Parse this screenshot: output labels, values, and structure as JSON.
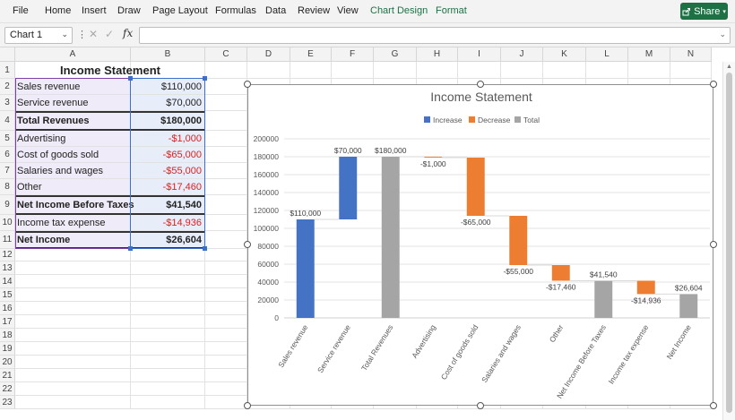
{
  "ribbon": {
    "tabs": [
      "File",
      "Home",
      "Insert",
      "Draw",
      "Page Layout",
      "Formulas",
      "Data",
      "Review",
      "View",
      "Chart Design",
      "Format"
    ],
    "share_label": "Share"
  },
  "formula_bar": {
    "name_box": "Chart 1",
    "fx_label": "fx",
    "formula": ""
  },
  "sheet": {
    "columns": [
      "A",
      "B",
      "C",
      "D",
      "E",
      "F",
      "G",
      "H",
      "I",
      "J",
      "K",
      "L",
      "M",
      "N"
    ],
    "rows": [
      "1",
      "2",
      "3",
      "4",
      "5",
      "6",
      "7",
      "8",
      "9",
      "10",
      "11",
      "12",
      "13",
      "14",
      "15",
      "16",
      "17",
      "18",
      "19",
      "20",
      "21",
      "22",
      "23"
    ],
    "table_title": "Income Statement",
    "table": [
      {
        "label": "Sales revenue",
        "value": "$110,000",
        "bold": false,
        "neg": false
      },
      {
        "label": "Service revenue",
        "value": "$70,000",
        "bold": false,
        "neg": false
      },
      {
        "label": "Total Revenues",
        "value": "$180,000",
        "bold": true,
        "neg": false
      },
      {
        "label": "Advertising",
        "value": "-$1,000",
        "bold": false,
        "neg": true
      },
      {
        "label": "Cost of goods sold",
        "value": "-$65,000",
        "bold": false,
        "neg": true
      },
      {
        "label": "Salaries and wages",
        "value": "-$55,000",
        "bold": false,
        "neg": true
      },
      {
        "label": "Other",
        "value": "-$17,460",
        "bold": false,
        "neg": true
      },
      {
        "label": "Net Income Before Taxes",
        "value": "$41,540",
        "bold": true,
        "neg": false
      },
      {
        "label": "Income tax expense",
        "value": "-$14,936",
        "bold": false,
        "neg": true
      },
      {
        "label": "Net Income",
        "value": "$26,604",
        "bold": true,
        "neg": false
      }
    ]
  },
  "chart_data": {
    "type": "bar",
    "subtype": "waterfall",
    "title": "Income Statement",
    "legend": [
      "Increase",
      "Decrease",
      "Total"
    ],
    "legend_position": "top",
    "colors": {
      "Increase": "#4472c4",
      "Decrease": "#ed7d31",
      "Total": "#a5a5a5"
    },
    "ylim": [
      0,
      200000
    ],
    "yticks": [
      "0",
      "20000",
      "40000",
      "60000",
      "80000",
      "100000",
      "120000",
      "140000",
      "160000",
      "180000",
      "200000"
    ],
    "categories": [
      "Sales revenue",
      "Service revenue",
      "Total Revenues",
      "Advertising",
      "Cost of goods sold",
      "Salaries and wages",
      "Other",
      "Net Income Before Taxes",
      "Income tax expense",
      "Net Income"
    ],
    "values": [
      110000,
      70000,
      180000,
      -1000,
      -65000,
      -55000,
      -17460,
      41540,
      -14936,
      26604
    ],
    "kinds": [
      "Increase",
      "Increase",
      "Total",
      "Decrease",
      "Decrease",
      "Decrease",
      "Decrease",
      "Total",
      "Decrease",
      "Total"
    ],
    "data_labels": [
      "$110,000",
      "$70,000",
      "$180,000",
      "-$1,000",
      "-$65,000",
      "-$55,000",
      "-$17,460",
      "$41,540",
      "-$14,936",
      "$26,604"
    ]
  }
}
